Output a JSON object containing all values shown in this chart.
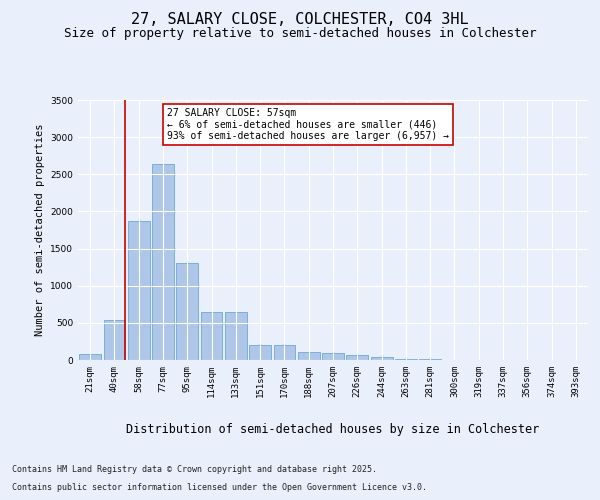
{
  "title": "27, SALARY CLOSE, COLCHESTER, CO4 3HL",
  "subtitle": "Size of property relative to semi-detached houses in Colchester",
  "xlabel": "Distribution of semi-detached houses by size in Colchester",
  "ylabel": "Number of semi-detached properties",
  "categories": [
    "21sqm",
    "40sqm",
    "58sqm",
    "77sqm",
    "95sqm",
    "114sqm",
    "133sqm",
    "151sqm",
    "170sqm",
    "188sqm",
    "207sqm",
    "226sqm",
    "244sqm",
    "263sqm",
    "281sqm",
    "300sqm",
    "319sqm",
    "337sqm",
    "356sqm",
    "374sqm",
    "393sqm"
  ],
  "values": [
    75,
    540,
    1870,
    2640,
    1310,
    640,
    640,
    200,
    200,
    110,
    90,
    65,
    40,
    20,
    10,
    5,
    3,
    2,
    1,
    1,
    0
  ],
  "bar_color": "#aec6e8",
  "bar_edge_color": "#5a9fd4",
  "vline_color": "#cc0000",
  "annotation_title": "27 SALARY CLOSE: 57sqm",
  "annotation_line1": "← 6% of semi-detached houses are smaller (446)",
  "annotation_line2": "93% of semi-detached houses are larger (6,957) →",
  "annotation_box_color": "#ffffff",
  "annotation_box_edge_color": "#cc0000",
  "ylim": [
    0,
    3500
  ],
  "yticks": [
    0,
    500,
    1000,
    1500,
    2000,
    2500,
    3000,
    3500
  ],
  "footer_line1": "Contains HM Land Registry data © Crown copyright and database right 2025.",
  "footer_line2": "Contains public sector information licensed under the Open Government Licence v3.0.",
  "background_color": "#eaf0fb",
  "plot_background_color": "#eaf0fb",
  "grid_color": "#ffffff",
  "title_fontsize": 11,
  "subtitle_fontsize": 9,
  "xlabel_fontsize": 8.5,
  "ylabel_fontsize": 7.5,
  "tick_fontsize": 6.5,
  "annotation_fontsize": 7,
  "footer_fontsize": 6
}
